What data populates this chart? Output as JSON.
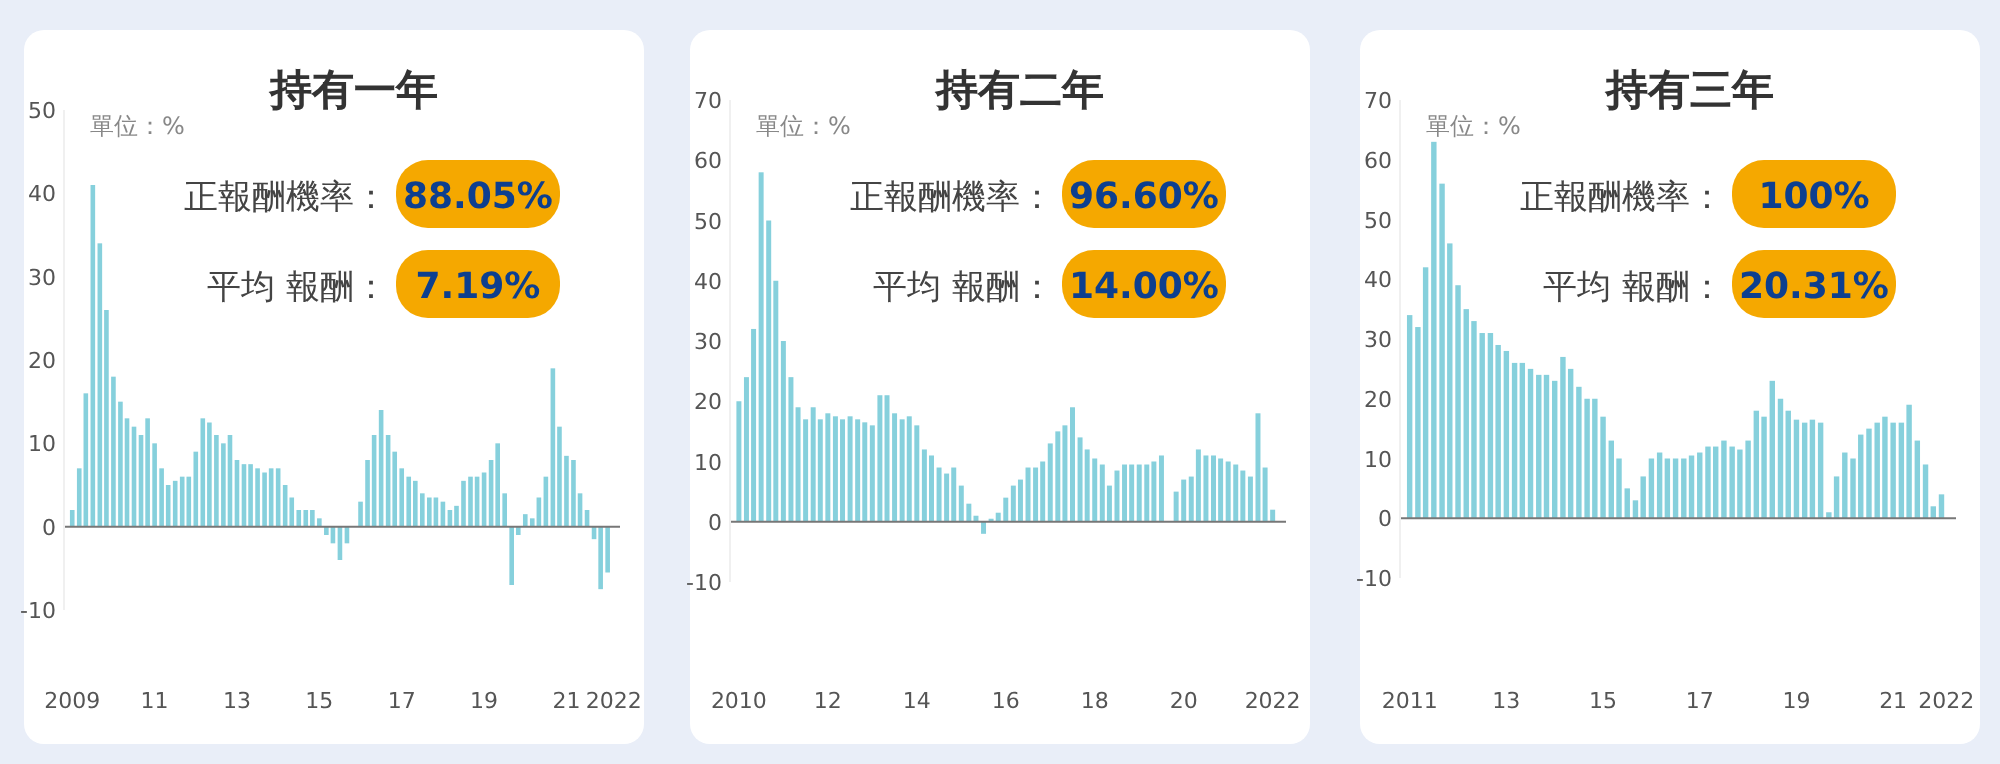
{
  "chart_data": [
    {
      "type": "bar",
      "title": "持有一年",
      "annotations": [
        "單位：%",
        "正報酬機率：",
        "88.05%",
        "平均 報酬：",
        "7.19%"
      ],
      "color": "#86d0dc",
      "x": [
        2009,
        2009.17,
        2009.33,
        2009.5,
        2009.67,
        2009.83,
        2010,
        2010.17,
        2010.33,
        2010.5,
        2010.67,
        2010.83,
        2011,
        2011.17,
        2011.33,
        2011.5,
        2011.67,
        2011.83,
        2012,
        2012.17,
        2012.33,
        2012.5,
        2012.67,
        2012.83,
        2013,
        2013.17,
        2013.33,
        2013.5,
        2013.67,
        2013.83,
        2014,
        2014.17,
        2014.33,
        2014.5,
        2014.67,
        2014.83,
        2015,
        2015.17,
        2015.33,
        2015.5,
        2015.67,
        2015.83,
        2016,
        2016.17,
        2016.33,
        2016.5,
        2016.67,
        2016.83,
        2017,
        2017.17,
        2017.33,
        2017.5,
        2017.67,
        2017.83,
        2018,
        2018.17,
        2018.33,
        2018.5,
        2018.67,
        2018.83,
        2019,
        2019.17,
        2019.33,
        2019.5,
        2019.67,
        2019.83,
        2020,
        2020.17,
        2020.33,
        2020.5,
        2020.67,
        2020.83,
        2021,
        2021.17,
        2021.33,
        2021.5,
        2021.67,
        2021.83,
        2022
      ],
      "values": [
        2,
        7,
        16,
        41,
        34,
        26,
        18,
        15,
        13,
        12,
        11,
        13,
        10,
        7,
        5,
        5.5,
        6,
        6,
        9,
        13,
        12.5,
        11,
        10,
        11,
        8,
        7.5,
        7.5,
        7,
        6.5,
        7,
        7,
        5,
        3.5,
        2,
        2,
        2,
        1,
        -1,
        -2,
        -4,
        -2,
        0,
        3,
        8,
        11,
        14,
        11,
        9,
        7,
        6,
        5.5,
        4,
        3.5,
        3.5,
        3,
        2,
        2.5,
        5.5,
        6,
        6,
        6.5,
        8,
        10,
        4,
        -7,
        -1,
        1.5,
        1,
        3.5,
        6,
        19,
        12,
        8.5,
        8,
        4,
        2,
        -1.5,
        -7.5,
        -5.5
      ],
      "xlim": [
        2008.8,
        2022.3
      ],
      "xticks": [
        {
          "value": 2009,
          "label": "2009"
        },
        {
          "value": 2011,
          "label": "11"
        },
        {
          "value": 2013,
          "label": "13"
        },
        {
          "value": 2015,
          "label": "15"
        },
        {
          "value": 2017,
          "label": "17"
        },
        {
          "value": 2019,
          "label": "19"
        },
        {
          "value": 2021,
          "label": "21"
        },
        {
          "value": 2022.15,
          "label": "2022"
        }
      ],
      "ylim": [
        -10,
        50
      ],
      "yticks": [
        -10,
        0,
        10,
        20,
        30,
        40,
        50
      ]
    },
    {
      "type": "bar",
      "title": "持有二年",
      "annotations": [
        "單位：%",
        "正報酬機率：",
        "96.60%",
        "平均 報酬：",
        "14.00%"
      ],
      "color": "#86d0dc",
      "x": [
        2010,
        2010.17,
        2010.33,
        2010.5,
        2010.67,
        2010.83,
        2011,
        2011.17,
        2011.33,
        2011.5,
        2011.67,
        2011.83,
        2012,
        2012.17,
        2012.33,
        2012.5,
        2012.67,
        2012.83,
        2013,
        2013.17,
        2013.33,
        2013.5,
        2013.67,
        2013.83,
        2014,
        2014.17,
        2014.33,
        2014.5,
        2014.67,
        2014.83,
        2015,
        2015.17,
        2015.33,
        2015.5,
        2015.67,
        2015.83,
        2016,
        2016.17,
        2016.33,
        2016.5,
        2016.67,
        2016.83,
        2017,
        2017.17,
        2017.33,
        2017.5,
        2017.67,
        2017.83,
        2018,
        2018.17,
        2018.33,
        2018.5,
        2018.67,
        2018.83,
        2019,
        2019.17,
        2019.33,
        2019.5,
        2019.67,
        2019.83,
        2020,
        2020.17,
        2020.33,
        2020.5,
        2020.67,
        2020.83,
        2021,
        2021.17,
        2021.33,
        2021.5,
        2021.67,
        2021.83,
        2022
      ],
      "values": [
        20,
        24,
        32,
        58,
        50,
        40,
        30,
        24,
        19,
        17,
        19,
        17,
        18,
        17.5,
        17,
        17.5,
        17,
        16.5,
        16,
        21,
        21,
        18,
        17,
        17.5,
        16,
        12,
        11,
        9,
        8,
        9,
        6,
        3,
        1,
        -2,
        0.5,
        1.5,
        4,
        6,
        7,
        9,
        9,
        10,
        13,
        15,
        16,
        19,
        14,
        12,
        10.5,
        9.5,
        6,
        8.5,
        9.5,
        9.5,
        9.5,
        9.5,
        10,
        11,
        0,
        5,
        7,
        7.5,
        12,
        11,
        11,
        10.5,
        10,
        9.5,
        8.5,
        7.5,
        18,
        9,
        2
      ],
      "xlim": [
        2009.8,
        2022.3
      ],
      "xticks": [
        {
          "value": 2010,
          "label": "2010"
        },
        {
          "value": 2012,
          "label": "12"
        },
        {
          "value": 2014,
          "label": "14"
        },
        {
          "value": 2016,
          "label": "16"
        },
        {
          "value": 2018,
          "label": "18"
        },
        {
          "value": 2020,
          "label": "20"
        },
        {
          "value": 2022,
          "label": "2022"
        }
      ],
      "ylim": [
        -10,
        70
      ],
      "yticks": [
        -10,
        0,
        10,
        20,
        30,
        40,
        50,
        60,
        70
      ]
    },
    {
      "type": "bar",
      "title": "持有三年",
      "annotations": [
        "單位：%",
        "正報酬機率：",
        "100%",
        "平均 報酬：",
        "20.31%"
      ],
      "color": "#86d0dc",
      "x": [
        2011,
        2011.17,
        2011.33,
        2011.5,
        2011.67,
        2011.83,
        2012,
        2012.17,
        2012.33,
        2012.5,
        2012.67,
        2012.83,
        2013,
        2013.17,
        2013.33,
        2013.5,
        2013.67,
        2013.83,
        2014,
        2014.17,
        2014.33,
        2014.5,
        2014.67,
        2014.83,
        2015,
        2015.17,
        2015.33,
        2015.5,
        2015.67,
        2015.83,
        2016,
        2016.17,
        2016.33,
        2016.5,
        2016.67,
        2016.83,
        2017,
        2017.17,
        2017.33,
        2017.5,
        2017.67,
        2017.83,
        2018,
        2018.17,
        2018.33,
        2018.5,
        2018.67,
        2018.83,
        2019,
        2019.17,
        2019.33,
        2019.5,
        2019.67,
        2019.83,
        2020,
        2020.17,
        2020.33,
        2020.5,
        2020.67,
        2020.83,
        2021,
        2021.17,
        2021.33,
        2021.5,
        2021.67,
        2021.83,
        2022
      ],
      "values": [
        34,
        32,
        42,
        63,
        56,
        46,
        39,
        35,
        33,
        31,
        31,
        29,
        28,
        26,
        26,
        25,
        24,
        24,
        23,
        27,
        25,
        22,
        20,
        20,
        17,
        13,
        10,
        5,
        3,
        7,
        10,
        11,
        10,
        10,
        10,
        10.5,
        11,
        12,
        12,
        13,
        12,
        11.5,
        13,
        18,
        17,
        23,
        20,
        18,
        16.5,
        16,
        16.5,
        16,
        1,
        7,
        11,
        10,
        14,
        15,
        16,
        17,
        16,
        16,
        19,
        13,
        9,
        2,
        4
      ],
      "xlim": [
        2010.8,
        2022.3
      ],
      "xticks": [
        {
          "value": 2011,
          "label": "2011"
        },
        {
          "value": 2013,
          "label": "13"
        },
        {
          "value": 2015,
          "label": "15"
        },
        {
          "value": 2017,
          "label": "17"
        },
        {
          "value": 2019,
          "label": "19"
        },
        {
          "value": 2021,
          "label": "21"
        },
        {
          "value": 2022.1,
          "label": "2022"
        }
      ],
      "ylim": [
        -10,
        70
      ],
      "yticks": [
        -10,
        0,
        10,
        20,
        30,
        40,
        50,
        60,
        70
      ]
    }
  ]
}
